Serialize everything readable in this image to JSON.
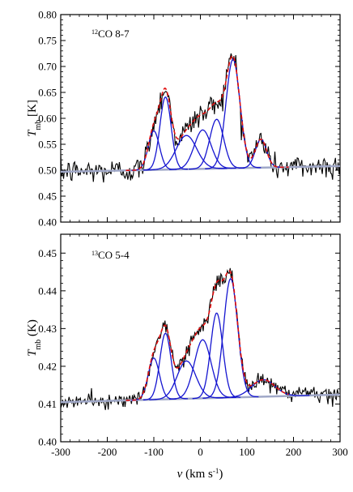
{
  "chart_data": [
    {
      "type": "line",
      "annotation": {
        "sup": "12",
        "text": "CO 8-7"
      },
      "ylabel": {
        "main": "T",
        "sub": "mb",
        "unit": " [K]"
      },
      "xlim": [
        -300,
        300
      ],
      "ylim": [
        0.4,
        0.8
      ],
      "yticks": [
        "0.40",
        "0.45",
        "0.50",
        "0.55",
        "0.60",
        "0.65",
        "0.70",
        "0.75",
        "0.80"
      ],
      "baseline": {
        "start": 0.497,
        "end": 0.508,
        "color": "#a0a8c8"
      },
      "noise_sigma": 0.022,
      "gaussians": [
        {
          "center": -100,
          "amplitude": 0.075,
          "width": 12
        },
        {
          "center": -75,
          "amplitude": 0.14,
          "width": 12
        },
        {
          "center": -30,
          "amplitude": 0.065,
          "width": 22
        },
        {
          "center": 5,
          "amplitude": 0.075,
          "width": 18
        },
        {
          "center": 35,
          "amplitude": 0.095,
          "width": 15
        },
        {
          "center": 70,
          "amplitude": 0.21,
          "width": 15
        },
        {
          "center": 130,
          "amplitude": 0.055,
          "width": 12
        }
      ],
      "series": [
        {
          "role": "observed",
          "color": "#000000"
        },
        {
          "role": "components",
          "color": "#1515d0"
        },
        {
          "role": "total-fit",
          "color": "#e01010"
        }
      ]
    },
    {
      "type": "line",
      "annotation": {
        "sup": "13",
        "text": "CO 5-4"
      },
      "ylabel": {
        "main": "T",
        "sub": "mb",
        "unit": " (K)"
      },
      "xlabel": {
        "main": "v",
        "unit": " (km s",
        "sup": "-1",
        "close": ")"
      },
      "xlim": [
        -300,
        300
      ],
      "ylim": [
        0.4,
        0.455
      ],
      "yticks": [
        "0.40",
        "0.41",
        "0.42",
        "0.43",
        "0.44",
        "0.45"
      ],
      "xticks": [
        -300,
        -200,
        -100,
        0,
        100,
        200,
        300
      ],
      "baseline": {
        "start": 0.4105,
        "end": 0.4125,
        "color": "#a0a8c8"
      },
      "noise_sigma": 0.0018,
      "gaussians": [
        {
          "center": -100,
          "amplitude": 0.011,
          "width": 12
        },
        {
          "center": -75,
          "amplitude": 0.0175,
          "width": 12
        },
        {
          "center": -30,
          "amplitude": 0.01,
          "width": 20
        },
        {
          "center": 5,
          "amplitude": 0.0155,
          "width": 18
        },
        {
          "center": 35,
          "amplitude": 0.0225,
          "width": 13
        },
        {
          "center": 65,
          "amplitude": 0.0315,
          "width": 15
        },
        {
          "center": 135,
          "amplitude": 0.0045,
          "width": 25
        }
      ],
      "series": [
        {
          "role": "observed",
          "color": "#000000"
        },
        {
          "role": "components",
          "color": "#1515d0"
        },
        {
          "role": "total-fit",
          "color": "#e01010"
        }
      ]
    }
  ]
}
